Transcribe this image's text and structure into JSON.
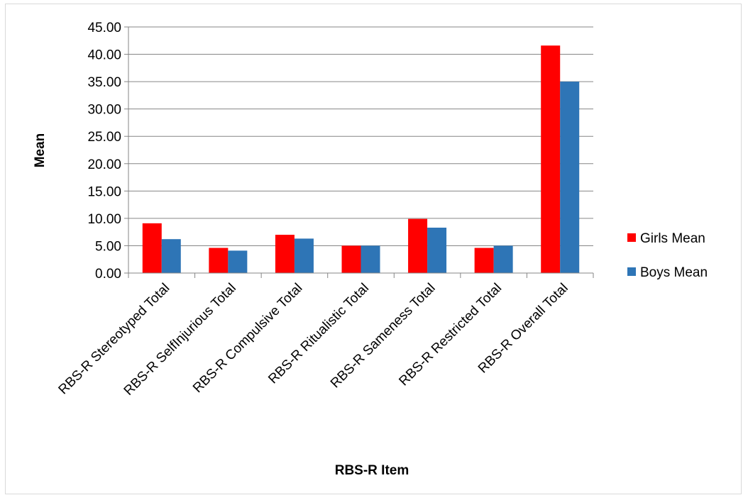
{
  "chart_data": {
    "type": "bar",
    "title": "",
    "xlabel": "RBS-R Item",
    "ylabel": "Mean",
    "ylim": [
      0,
      45
    ],
    "yticks": [
      "0.00",
      "5.00",
      "10.00",
      "15.00",
      "20.00",
      "25.00",
      "30.00",
      "35.00",
      "40.00",
      "45.00"
    ],
    "categories": [
      "RBS-R Stereotyped Total",
      "RBS-R SelfInjurious Total",
      "RBS-R Compulsive Total",
      "RBS-R Ritualistic Total",
      "RBS-R Sameness Total",
      "RBS-R Restricted Total",
      "RBS-R Overall Total"
    ],
    "series": [
      {
        "name": "Girls Mean",
        "color": "#ff0000",
        "values": [
          9.1,
          4.6,
          7.0,
          5.0,
          9.9,
          4.6,
          41.6
        ]
      },
      {
        "name": "Boys Mean",
        "color": "#2e75b6",
        "values": [
          6.2,
          4.1,
          6.3,
          5.0,
          8.3,
          5.0,
          35.0
        ]
      }
    ],
    "grid": true,
    "legend_position": "right"
  }
}
